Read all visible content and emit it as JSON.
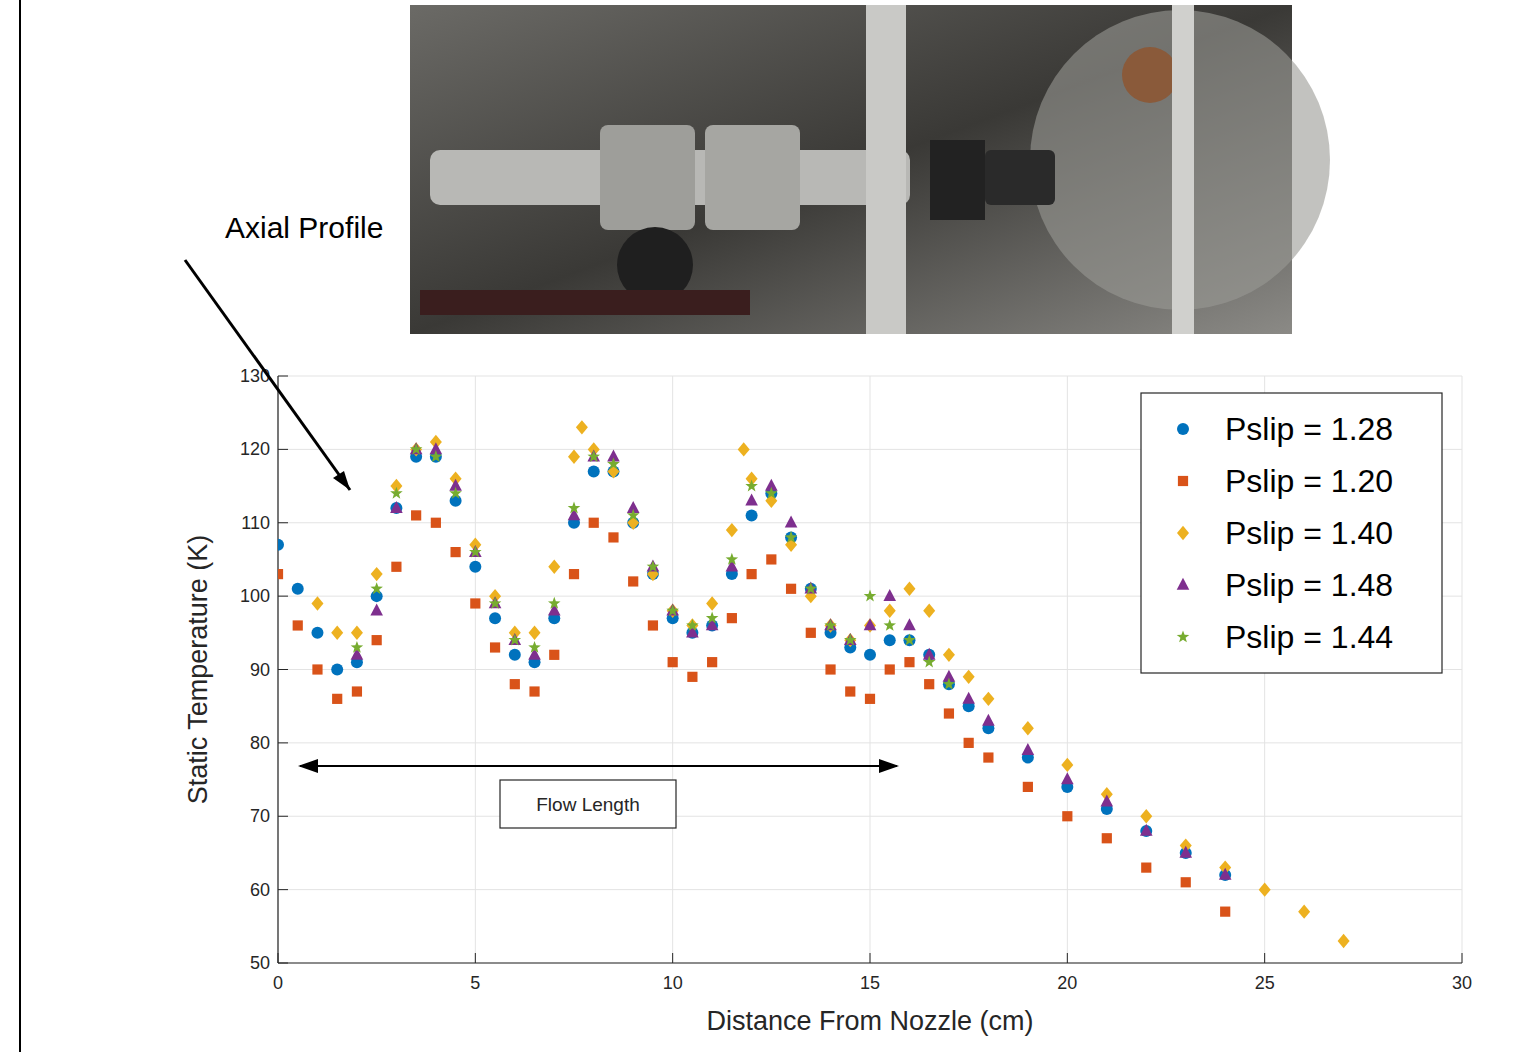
{
  "chart_data": {
    "type": "scatter",
    "xlabel": "Distance From Nozzle (cm)",
    "ylabel": "Static Temperature (K)",
    "xlim": [
      0,
      30
    ],
    "ylim": [
      50,
      130
    ],
    "xticks": [
      0,
      5,
      10,
      15,
      20,
      25,
      30
    ],
    "yticks": [
      50,
      60,
      70,
      80,
      90,
      100,
      110,
      120,
      130
    ],
    "grid": true,
    "legend": "upper right",
    "annotations": [
      "Axial Profile",
      "Flow Length"
    ],
    "series": [
      {
        "name": "Pslip = 1.28",
        "color": "#0072BD",
        "marker": "circle",
        "x": [
          0,
          0.5,
          1,
          1.5,
          2,
          2.5,
          3,
          3.5,
          4,
          4.5,
          5,
          5.5,
          6,
          6.5,
          7,
          7.5,
          8,
          8.5,
          9,
          9.5,
          10,
          10.5,
          11,
          11.5,
          12,
          12.5,
          13,
          13.5,
          14,
          14.5,
          15,
          15.5,
          16,
          16.5,
          17,
          17.5,
          18,
          19,
          20,
          21,
          22,
          23,
          24
        ],
        "values": [
          107,
          101,
          95,
          90,
          91,
          100,
          112,
          119,
          119,
          113,
          104,
          97,
          92,
          91,
          97,
          110,
          117,
          117,
          110,
          103,
          97,
          95,
          96,
          103,
          111,
          114,
          108,
          101,
          95,
          93,
          92,
          94,
          94,
          92,
          88,
          85,
          82,
          78,
          74,
          71,
          68,
          65,
          62
        ]
      },
      {
        "name": "Pslip = 1.20",
        "color": "#D95319",
        "marker": "square",
        "x": [
          0,
          0.5,
          1,
          1.5,
          2,
          2.5,
          3,
          3.5,
          4,
          4.5,
          5,
          5.5,
          6,
          6.5,
          7,
          7.5,
          8,
          8.5,
          9,
          9.5,
          10,
          10.5,
          11,
          11.5,
          12,
          12.5,
          13,
          13.5,
          14,
          14.5,
          15,
          15.5,
          16,
          16.5,
          17,
          17.5,
          18,
          19,
          20,
          21,
          22,
          23,
          24
        ],
        "values": [
          103,
          96,
          90,
          86,
          87,
          94,
          104,
          111,
          110,
          106,
          99,
          93,
          88,
          87,
          92,
          103,
          110,
          108,
          102,
          96,
          91,
          89,
          91,
          97,
          103,
          105,
          101,
          95,
          90,
          87,
          86,
          90,
          91,
          88,
          84,
          80,
          78,
          74,
          70,
          67,
          63,
          61,
          57
        ]
      },
      {
        "name": "Pslip = 1.40",
        "color": "#EDB120",
        "marker": "diamond",
        "x": [
          1,
          1.5,
          2,
          2.5,
          3,
          3.5,
          4,
          4.5,
          5,
          5.5,
          6,
          6.5,
          7,
          7.5,
          7.7,
          8,
          8.5,
          9,
          9.5,
          10,
          10.5,
          11,
          11.5,
          11.8,
          12,
          12.5,
          13,
          13.5,
          14,
          14.5,
          15,
          15.5,
          16,
          16.5,
          17,
          17.5,
          18,
          19,
          20,
          21,
          22,
          23,
          24,
          25,
          26,
          27
        ],
        "values": [
          99,
          95,
          95,
          103,
          115,
          120,
          121,
          116,
          107,
          100,
          95,
          95,
          104,
          119,
          123,
          120,
          117,
          110,
          103,
          98,
          96,
          99,
          109,
          120,
          116,
          113,
          107,
          100,
          96,
          94,
          96,
          98,
          101,
          98,
          92,
          89,
          86,
          82,
          77,
          73,
          70,
          66,
          63,
          60,
          57,
          53
        ]
      },
      {
        "name": "Pslip = 1.48",
        "color": "#7E2F8E",
        "marker": "triangle",
        "x": [
          2,
          2.5,
          3,
          3.5,
          4,
          4.5,
          5,
          5.5,
          6,
          6.5,
          7,
          7.5,
          8,
          8.5,
          9,
          9.5,
          10,
          10.5,
          11,
          11.5,
          12,
          12.5,
          13,
          13.5,
          14,
          14.5,
          15,
          15.5,
          16,
          16.5,
          17,
          17.5,
          18,
          19,
          20,
          21,
          22,
          23,
          24
        ],
        "values": [
          92,
          98,
          112,
          120,
          120,
          115,
          106,
          99,
          94,
          92,
          98,
          111,
          119,
          119,
          112,
          104,
          98,
          95,
          96,
          104,
          113,
          115,
          110,
          101,
          96,
          94,
          96,
          100,
          96,
          92,
          89,
          86,
          83,
          79,
          75,
          72,
          68,
          65,
          62
        ]
      },
      {
        "name": "Pslip = 1.44",
        "color": "#77AC30",
        "marker": "star",
        "x": [
          2,
          2.5,
          3,
          3.5,
          4,
          4.5,
          5,
          5.5,
          6,
          6.5,
          7,
          7.5,
          8,
          8.5,
          9,
          9.5,
          10,
          10.5,
          11,
          11.5,
          12,
          12.5,
          13,
          13.5,
          14,
          14.5,
          15,
          15.5,
          16,
          16.5,
          17
        ],
        "values": [
          93,
          101,
          114,
          120,
          119,
          114,
          106,
          99,
          94,
          93,
          99,
          112,
          119,
          118,
          111,
          104,
          98,
          96,
          97,
          105,
          115,
          114,
          108,
          101,
          96,
          94,
          100,
          96,
          94,
          91,
          88
        ]
      }
    ]
  }
}
